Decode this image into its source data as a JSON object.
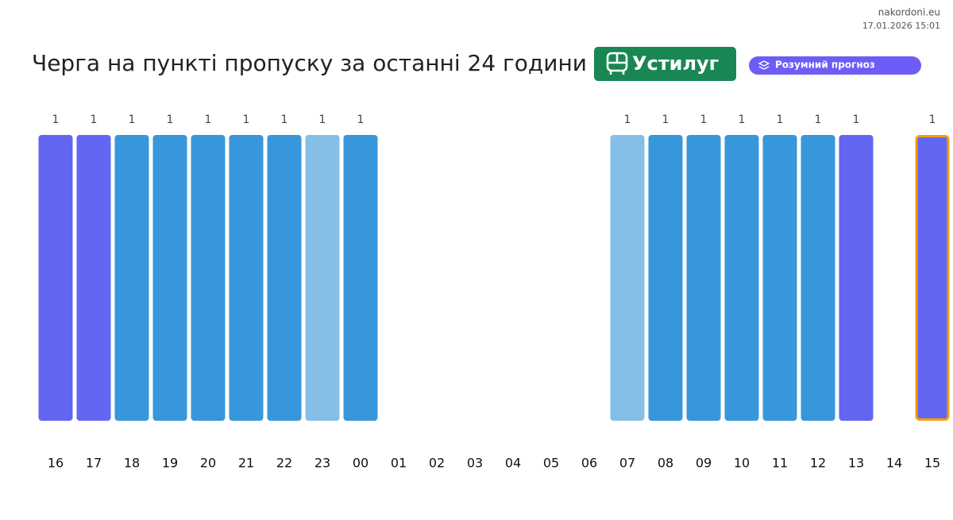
{
  "site": "nakordoni.eu",
  "timestamp": "17.01.2026 15:01",
  "badge": "Устилуг",
  "pill": "Розумний прогноз",
  "chart_data": {
    "type": "bar",
    "title": "Черга на пункті пропуску за останні 24 години",
    "categories": [
      "16",
      "17",
      "18",
      "19",
      "20",
      "21",
      "22",
      "23",
      "00",
      "01",
      "02",
      "03",
      "04",
      "05",
      "06",
      "07",
      "08",
      "09",
      "10",
      "11",
      "12",
      "13",
      "14",
      "15"
    ],
    "values": [
      1,
      1,
      1,
      1,
      1,
      1,
      1,
      1,
      1,
      null,
      null,
      null,
      null,
      null,
      null,
      1,
      1,
      1,
      1,
      1,
      1,
      1,
      null,
      1
    ],
    "colors": [
      "#6366f1",
      "#6366f1",
      "#3897da",
      "#3897da",
      "#3897da",
      "#3897da",
      "#3897da",
      "#85bfe8",
      "#3897da",
      null,
      null,
      null,
      null,
      null,
      null,
      "#85bfe8",
      "#3897da",
      "#3897da",
      "#3897da",
      "#3897da",
      "#3897da",
      "#6366f1",
      null,
      "#6366f1"
    ],
    "outline": {
      "category": "15",
      "color": "#f59e0b"
    },
    "ylim": [
      0,
      1
    ]
  }
}
